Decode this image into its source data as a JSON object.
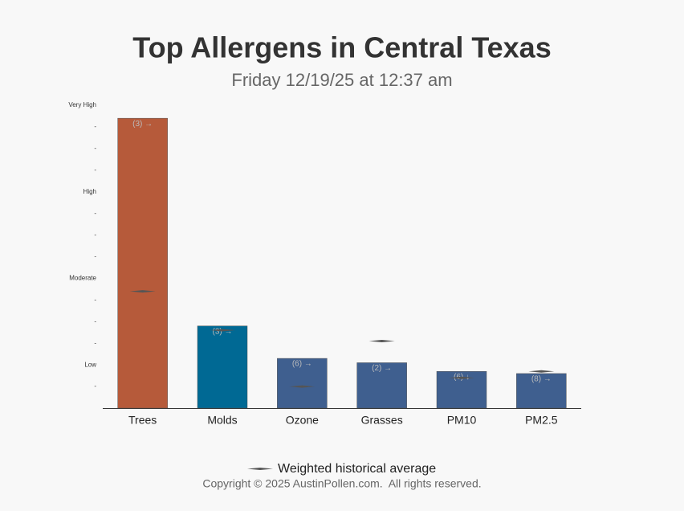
{
  "chart_data": {
    "type": "bar",
    "title": "Top Allergens in Central Texas",
    "subtitle": "Friday 12/19/25 at 12:37 am",
    "categories": [
      "Trees",
      "Molds",
      "Ozone",
      "Grasses",
      "PM10",
      "PM2.5"
    ],
    "values": [
      13.4,
      3.8,
      2.3,
      2.1,
      1.7,
      1.6
    ],
    "colors": [
      "#b65a3a",
      "#006994",
      "#3f5f8f",
      "#3f5f8f",
      "#3f5f8f",
      "#3f5f8f"
    ],
    "bar_labels": [
      "(3) →",
      "(3) →",
      "(6) →",
      "(2) →",
      "(6) ↓",
      "(8) →"
    ],
    "average": {
      "name": "Weighted historical average",
      "color": "#555555",
      "values": [
        5.4,
        3.6,
        1.0,
        3.1,
        1.4,
        1.7
      ]
    },
    "ylim": [
      0,
      14
    ],
    "yticks": [
      {
        "value": 1,
        "label": "-"
      },
      {
        "value": 2,
        "label": "Low"
      },
      {
        "value": 3,
        "label": "-"
      },
      {
        "value": 4,
        "label": "-"
      },
      {
        "value": 5,
        "label": "-"
      },
      {
        "value": 6,
        "label": "Moderate"
      },
      {
        "value": 7,
        "label": "-"
      },
      {
        "value": 8,
        "label": "-"
      },
      {
        "value": 9,
        "label": "-"
      },
      {
        "value": 10,
        "label": "High"
      },
      {
        "value": 11,
        "label": "-"
      },
      {
        "value": 12,
        "label": "-"
      },
      {
        "value": 13,
        "label": "-"
      },
      {
        "value": 14,
        "label": "Very High"
      }
    ],
    "copyright": "Copyright © 2025 AustinPollen.com.  All rights reserved."
  }
}
